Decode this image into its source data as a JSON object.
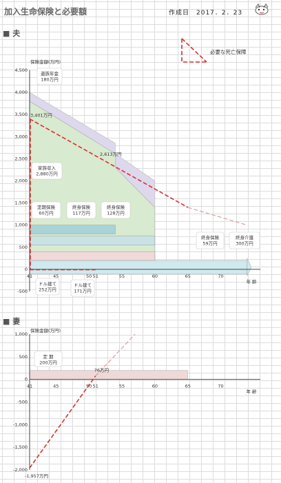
{
  "header": {
    "title": "加入生命保険と必要額",
    "date_label": "作成日　2017．2．23"
  },
  "legend": {
    "required_label": "必要な死亡保障"
  },
  "colors": {
    "needed_line": "#d63030",
    "lavender": "#ddd8ec",
    "green": "#d8ead0",
    "teal": "#a8d3d8",
    "light_teal": "#c9e2e6",
    "pink": "#f1d9d9",
    "light_blue": "#cfe9ee",
    "wife_bar": "#efd8d8",
    "faded_line": "#d8a0a0"
  },
  "chart_data": [
    {
      "type": "area",
      "section_label": "夫",
      "ylabel": "保険金額(万円)",
      "xlabel": "年 齢",
      "ylim": [
        -500,
        4500
      ],
      "yticks": [
        -500,
        0,
        500,
        1000,
        1500,
        2000,
        2500,
        3000,
        3500,
        4000,
        4500
      ],
      "ytick_labels": [
        "-500",
        "0",
        "500",
        "1,000",
        "1,500",
        "2,000",
        "2,500",
        "3,000",
        "3,500",
        "4,000",
        "4,500"
      ],
      "xlim": [
        41,
        76
      ],
      "xticks": [
        41,
        45,
        50,
        51,
        55,
        60,
        65,
        70
      ],
      "xtick_labels": [
        "41",
        "45",
        "50",
        "51",
        "55",
        "60",
        "65",
        "70"
      ],
      "series": [
        {
          "name": "遺族年金",
          "x": [
            41,
            54,
            54,
            60
          ],
          "values": [
            4000,
            2850,
            2613,
            2000
          ]
        },
        {
          "name": "家族収入",
          "x": [
            41,
            54,
            54,
            60,
            60,
            65
          ],
          "values": [
            3800,
            2613,
            2300,
            1400,
            0,
            0
          ]
        },
        {
          "name": "必要な死亡保障",
          "x": [
            41,
            65,
            74
          ],
          "values": [
            3401,
            1400,
            1000
          ]
        }
      ],
      "bars": [
        {
          "label": "定期保険",
          "start": 41,
          "end": 54,
          "value": 1000
        },
        {
          "label": "終身保険",
          "start": 41,
          "end": 60,
          "value": 750
        },
        {
          "label": "ドル建て",
          "start": 41,
          "end": 60,
          "value": 400
        },
        {
          "label": "終身介護",
          "start": 41,
          "end": 74,
          "value": 200
        }
      ],
      "annotations": [
        {
          "text": "遺族年金\n180万円"
        },
        {
          "text": "3,401万円",
          "x": 41,
          "y": 3401
        },
        {
          "text": "2,613万円",
          "x": 54,
          "y": 2613
        },
        {
          "text": "家族収入\n2,880万円"
        },
        {
          "text": "定期保険\n60万円"
        },
        {
          "text": "終身保険\n117万円"
        },
        {
          "text": "終身保険\n128万円"
        },
        {
          "text": "終身保険\n59万円"
        },
        {
          "text": "終身介護\n300万円"
        },
        {
          "text": "ドル建て\n252万円"
        },
        {
          "text": "ドル建て\n171万円"
        }
      ]
    },
    {
      "type": "line",
      "section_label": "妻",
      "ylabel": "保険金額(万円)",
      "xlabel": "年 齢",
      "ylim": [
        -2000,
        1000
      ],
      "yticks": [
        -2000,
        -1500,
        -1000,
        -500,
        0,
        500,
        1000
      ],
      "ytick_labels": [
        "-2,000",
        "-1,500",
        "-1,000",
        "-500",
        "0",
        "500",
        "1,000"
      ],
      "xlim": [
        41,
        76
      ],
      "xticks": [
        41,
        45,
        50,
        51,
        55,
        60,
        65,
        70
      ],
      "xtick_labels": [
        "41",
        "45",
        "50",
        "51",
        "55",
        "60",
        "65",
        "70"
      ],
      "series": [
        {
          "name": "必要な死亡保障",
          "x": [
            41,
            51,
            57
          ],
          "values": [
            -1957,
            76,
            1000
          ]
        }
      ],
      "bars": [
        {
          "label": "定期",
          "start": 41,
          "end": 65,
          "value": 200
        }
      ],
      "annotations": [
        {
          "text": "定 期\n200万円"
        },
        {
          "text": "76万円",
          "x": 51,
          "y": 76
        },
        {
          "text": "-1,957万円",
          "x": 41,
          "y": -1957
        }
      ]
    }
  ]
}
